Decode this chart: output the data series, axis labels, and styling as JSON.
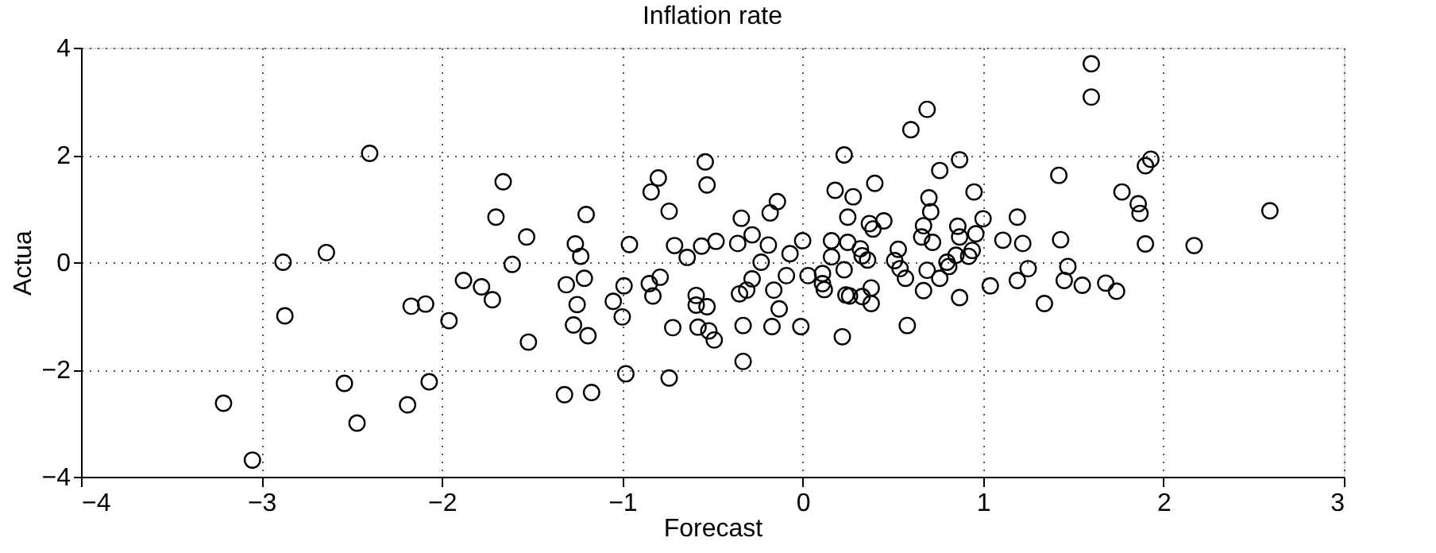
{
  "chart_data": {
    "type": "scatter",
    "title": "Inflation rate",
    "xlabel": "Forecast",
    "ylabel": "Actua",
    "xlim": [
      -4,
      3
    ],
    "xticks": [
      -4,
      -3,
      -2,
      -1,
      0,
      1,
      2,
      3
    ],
    "ylim": [
      -4,
      4
    ],
    "yticks": [
      -4,
      -2,
      0,
      2,
      4
    ],
    "grid": true,
    "marker": "circle",
    "legend": false,
    "series": [
      {
        "color": "#000000",
        "x": [
          -2.4,
          -2.88,
          -2.64,
          -2.87,
          -3.21,
          -3.05,
          -2.54,
          -2.47,
          -2.19,
          -2.07,
          -2.17,
          -2.09,
          -1.96,
          -1.88,
          -1.78,
          -1.72,
          -1.7,
          -1.66,
          -1.61,
          -1.53,
          -1.52,
          -1.26,
          -1.23,
          -1.2,
          -1.21,
          -1.31,
          -1.25,
          -1.27,
          -1.19,
          -1.32,
          -1.17,
          -0.96,
          -0.99,
          -1.05,
          -1.0,
          -0.98,
          -0.84,
          -0.8,
          -0.74,
          -0.71,
          -0.85,
          -0.79,
          -0.83,
          -0.72,
          -0.74,
          -0.64,
          -0.56,
          -0.48,
          -0.54,
          -0.53,
          -0.59,
          -0.59,
          -0.53,
          -0.58,
          -0.52,
          -0.49,
          -0.36,
          -0.34,
          -0.28,
          -0.19,
          -0.23,
          -0.28,
          -0.35,
          -0.31,
          -0.33,
          -0.33,
          -0.18,
          -0.14,
          -0.07,
          -0.09,
          -0.16,
          -0.13,
          -0.17,
          -0.01,
          0.0,
          0.03,
          0.11,
          0.11,
          0.12,
          0.16,
          0.16,
          0.18,
          0.23,
          0.28,
          0.25,
          0.25,
          0.23,
          0.24,
          0.26,
          0.22,
          0.4,
          0.37,
          0.39,
          0.45,
          0.32,
          0.33,
          0.36,
          0.33,
          0.38,
          0.38,
          0.53,
          0.51,
          0.54,
          0.57,
          0.58,
          0.6,
          0.69,
          0.76,
          0.87,
          0.7,
          0.71,
          0.67,
          0.66,
          0.72,
          0.67,
          0.69,
          0.76,
          0.8,
          0.81,
          0.85,
          0.92,
          0.94,
          0.96,
          1.0,
          0.95,
          0.86,
          0.87,
          0.87,
          1.04,
          1.11,
          1.19,
          1.22,
          1.25,
          1.19,
          1.34,
          1.42,
          1.43,
          1.47,
          1.45,
          1.55,
          1.6,
          1.6,
          1.68,
          1.74,
          1.77,
          1.86,
          1.87,
          1.9,
          1.9,
          1.93,
          2.17,
          2.59
        ],
        "values": [
          2.03,
          0.0,
          0.18,
          -1.0,
          -2.63,
          -3.69,
          -2.26,
          -3.0,
          -2.66,
          -2.23,
          -0.82,
          -0.78,
          -1.09,
          -0.34,
          -0.46,
          -0.7,
          0.84,
          1.5,
          -0.04,
          0.47,
          -1.49,
          0.34,
          0.11,
          0.89,
          -0.3,
          -0.42,
          -0.79,
          -1.17,
          -1.37,
          -2.47,
          -2.43,
          0.33,
          -0.44,
          -0.73,
          -1.02,
          -2.08,
          1.31,
          1.57,
          0.95,
          0.31,
          -0.4,
          -0.28,
          -0.63,
          -1.22,
          -2.16,
          0.09,
          0.3,
          0.39,
          1.87,
          1.44,
          -0.62,
          -0.8,
          -0.83,
          -1.21,
          -1.28,
          -1.45,
          0.35,
          0.82,
          0.51,
          0.32,
          0.0,
          -0.31,
          -0.59,
          -0.52,
          -1.18,
          -1.85,
          0.92,
          1.13,
          0.16,
          -0.25,
          -0.52,
          -0.87,
          -1.2,
          -1.2,
          0.4,
          -0.25,
          -0.21,
          -0.4,
          -0.51,
          0.4,
          0.1,
          1.34,
          2.0,
          1.22,
          0.84,
          0.37,
          -0.14,
          -0.61,
          -0.63,
          -1.39,
          1.47,
          0.72,
          0.62,
          0.77,
          0.25,
          0.12,
          0.04,
          -0.64,
          -0.48,
          -0.77,
          0.24,
          0.03,
          -0.12,
          -0.3,
          -1.18,
          2.47,
          2.85,
          1.71,
          1.91,
          1.2,
          0.94,
          0.68,
          0.47,
          0.37,
          -0.53,
          -0.15,
          -0.3,
          0.0,
          -0.08,
          0.13,
          0.11,
          0.22,
          0.53,
          0.81,
          1.31,
          0.67,
          0.47,
          -0.66,
          -0.44,
          0.41,
          0.84,
          0.35,
          -0.12,
          -0.34,
          -0.77,
          1.62,
          0.42,
          -0.08,
          -0.34,
          -0.43,
          3.7,
          3.08,
          -0.39,
          -0.54,
          1.31,
          1.09,
          0.91,
          0.34,
          1.8,
          1.92,
          0.31,
          0.96
        ]
      }
    ]
  }
}
